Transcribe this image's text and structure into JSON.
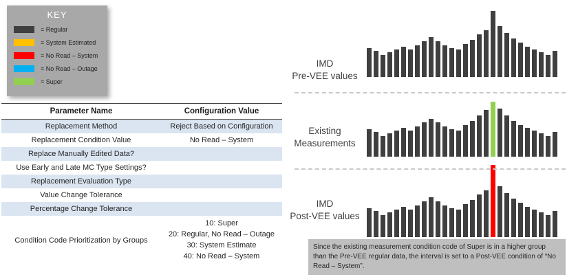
{
  "colors": {
    "regular": "#3f3f3f",
    "system_estimated": "#ffc000",
    "no_read_system": "#ff0000",
    "no_read_outage": "#00b0f0",
    "super": "#92d050",
    "table_alt_row": "#dbe5f1",
    "key_box_bg": "#a8a8a8",
    "callout_bg": "#bfbfbf"
  },
  "key": {
    "title": "KEY",
    "items": [
      {
        "label": "= Regular",
        "color": "#3f3f3f",
        "name": "regular"
      },
      {
        "label": "= System Estimated",
        "color": "#ffc000",
        "name": "system-estimated"
      },
      {
        "label": "= No Read – System",
        "color": "#ff0000",
        "name": "no-read-system"
      },
      {
        "label": "= No Read – Outage",
        "color": "#00b0f0",
        "name": "no-read-outage"
      },
      {
        "label": "= Super",
        "color": "#92d050",
        "name": "super"
      }
    ]
  },
  "table": {
    "headers": [
      "Parameter Name",
      "Configuration Value"
    ],
    "rows": [
      {
        "param": "Replacement Method",
        "value": "Reject Based on Configuration"
      },
      {
        "param": "Replacement Condition Value",
        "value": "No Read – System"
      },
      {
        "param": "Replace Manually Edited Data?",
        "value": ""
      },
      {
        "param": "Use Early and Late MC Type Settings?",
        "value": ""
      },
      {
        "param": "Replacement Evaluation Type",
        "value": ""
      },
      {
        "param": "Value Change Tolerance",
        "value": ""
      },
      {
        "param": "Percentage Change Tolerance",
        "value": ""
      },
      {
        "param": "Condition Code Prioritization by Groups",
        "value": "10: Super\n20: Regular, No Read – Outage\n30: System Estimate\n40: No Read – System"
      }
    ]
  },
  "chart_data": [
    {
      "type": "bar",
      "label": "IMD\nPre-VEE values",
      "values": [
        42,
        38,
        32,
        36,
        40,
        44,
        40,
        46,
        52,
        58,
        52,
        46,
        42,
        40,
        48,
        54,
        62,
        68,
        96,
        74,
        64,
        56,
        50,
        44,
        40,
        36,
        32,
        38
      ],
      "bar_color": "#3f3f3f",
      "highlight_index": -1,
      "highlight_color": null,
      "highlight_name": null
    },
    {
      "type": "bar",
      "label": "Existing\nMeasurements",
      "values": [
        40,
        36,
        30,
        34,
        38,
        42,
        38,
        44,
        50,
        55,
        50,
        44,
        40,
        38,
        46,
        52,
        60,
        68,
        80,
        70,
        60,
        52,
        46,
        42,
        38,
        34,
        30,
        36
      ],
      "bar_color": "#3f3f3f",
      "highlight_index": 18,
      "highlight_color": "#92d050",
      "highlight_name": "super-bar"
    },
    {
      "type": "bar",
      "label": "IMD\nPost-VEE values",
      "values": [
        42,
        38,
        32,
        36,
        40,
        44,
        40,
        46,
        52,
        58,
        52,
        46,
        42,
        40,
        48,
        54,
        62,
        68,
        105,
        74,
        64,
        56,
        50,
        44,
        40,
        36,
        32,
        38
      ],
      "bar_color": "#3f3f3f",
      "highlight_index": 18,
      "highlight_color": "#ff0000",
      "highlight_name": "no-read-system-bar"
    }
  ],
  "callout": {
    "text": "Since the existing measurement condition code of Super is in a higher group than the Pre-VEE regular data, the interval is set to a Post-VEE condition of “No Read – System”."
  }
}
